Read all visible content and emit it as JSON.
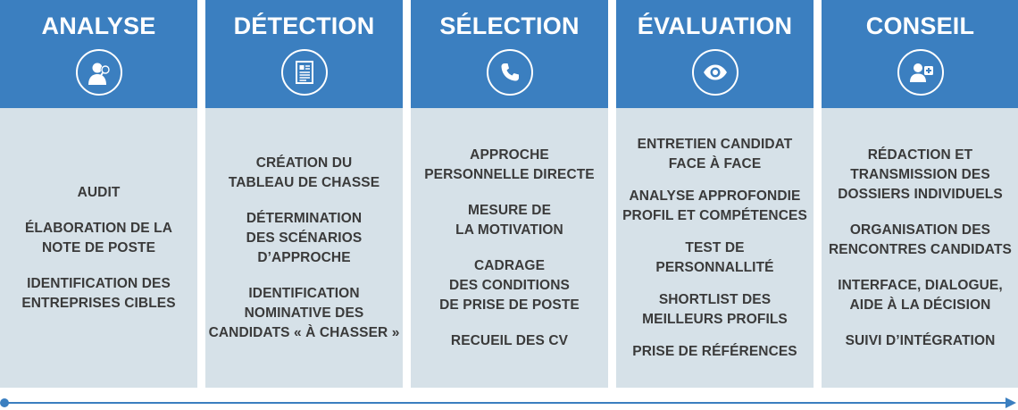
{
  "columns": [
    {
      "title": "ANALYSE",
      "icon": "person-magnifier-icon",
      "items": [
        "AUDIT",
        "ÉLABORATION DE LA\nNOTE DE POSTE",
        "IDENTIFICATION DES\nENTREPRISES CIBLES"
      ]
    },
    {
      "title": "DÉTECTION",
      "icon": "document-icon",
      "items": [
        "CRÉATION DU\nTABLEAU DE CHASSE",
        "DÉTERMINATION\nDES SCÉNARIOS\nD’APPROCHE",
        "IDENTIFICATION\nNOMINATIVE DES\nCANDIDATS « À CHASSER »"
      ]
    },
    {
      "title": "SÉLECTION",
      "icon": "phone-icon",
      "items": [
        "APPROCHE\nPERSONNELLE DIRECTE",
        "MESURE DE\nLA MOTIVATION",
        "CADRAGE\nDES CONDITIONS\nDE PRISE DE POSTE",
        "RECUEIL DES CV"
      ]
    },
    {
      "title": "ÉVALUATION",
      "icon": "eye-icon",
      "items": [
        "ENTRETIEN CANDIDAT\nFACE À FACE",
        "ANALYSE APPROFONDIE\nPROFIL ET COMPÉTENCES",
        "TEST DE\nPERSONNALLITÉ",
        "SHORTLIST DES\nMEILLEURS PROFILS",
        "PRISE DE RÉFÉRENCES"
      ]
    },
    {
      "title": "CONSEIL",
      "icon": "add-user-icon",
      "items": [
        "RÉDACTION ET\nTRANSMISSION DES\nDOSSIERS INDIVIDUELS",
        "ORGANISATION DES\nRENCONTRES CANDIDATS",
        "INTERFACE, DIALOGUE,\nAIDE À LA DÉCISION",
        "SUIVI D’INTÉGRATION"
      ]
    }
  ],
  "colors": {
    "header": "#3b7fc0",
    "body": "#d6e1e8",
    "text": "#3a3a3a",
    "timeline": "#3b7fc0"
  }
}
